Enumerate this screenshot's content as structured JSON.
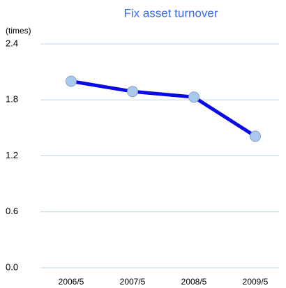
{
  "chart_data": {
    "type": "line",
    "title": "Fix asset turnover",
    "y_axis_label": "(times)",
    "categories": [
      "2006/5",
      "2007/5",
      "2008/5",
      "2009/5"
    ],
    "series": [
      {
        "name": "Fix asset turnover",
        "color": "#0a0ae6",
        "values": [
          2.0,
          1.89,
          1.83,
          1.41
        ]
      }
    ],
    "ylim": [
      0,
      2.4
    ],
    "yticks": [
      {
        "value": 0,
        "label": "0.0"
      },
      0.6,
      1.2,
      1.8,
      2.4
    ],
    "grid": true,
    "marker_color": "#a9c9f0"
  }
}
